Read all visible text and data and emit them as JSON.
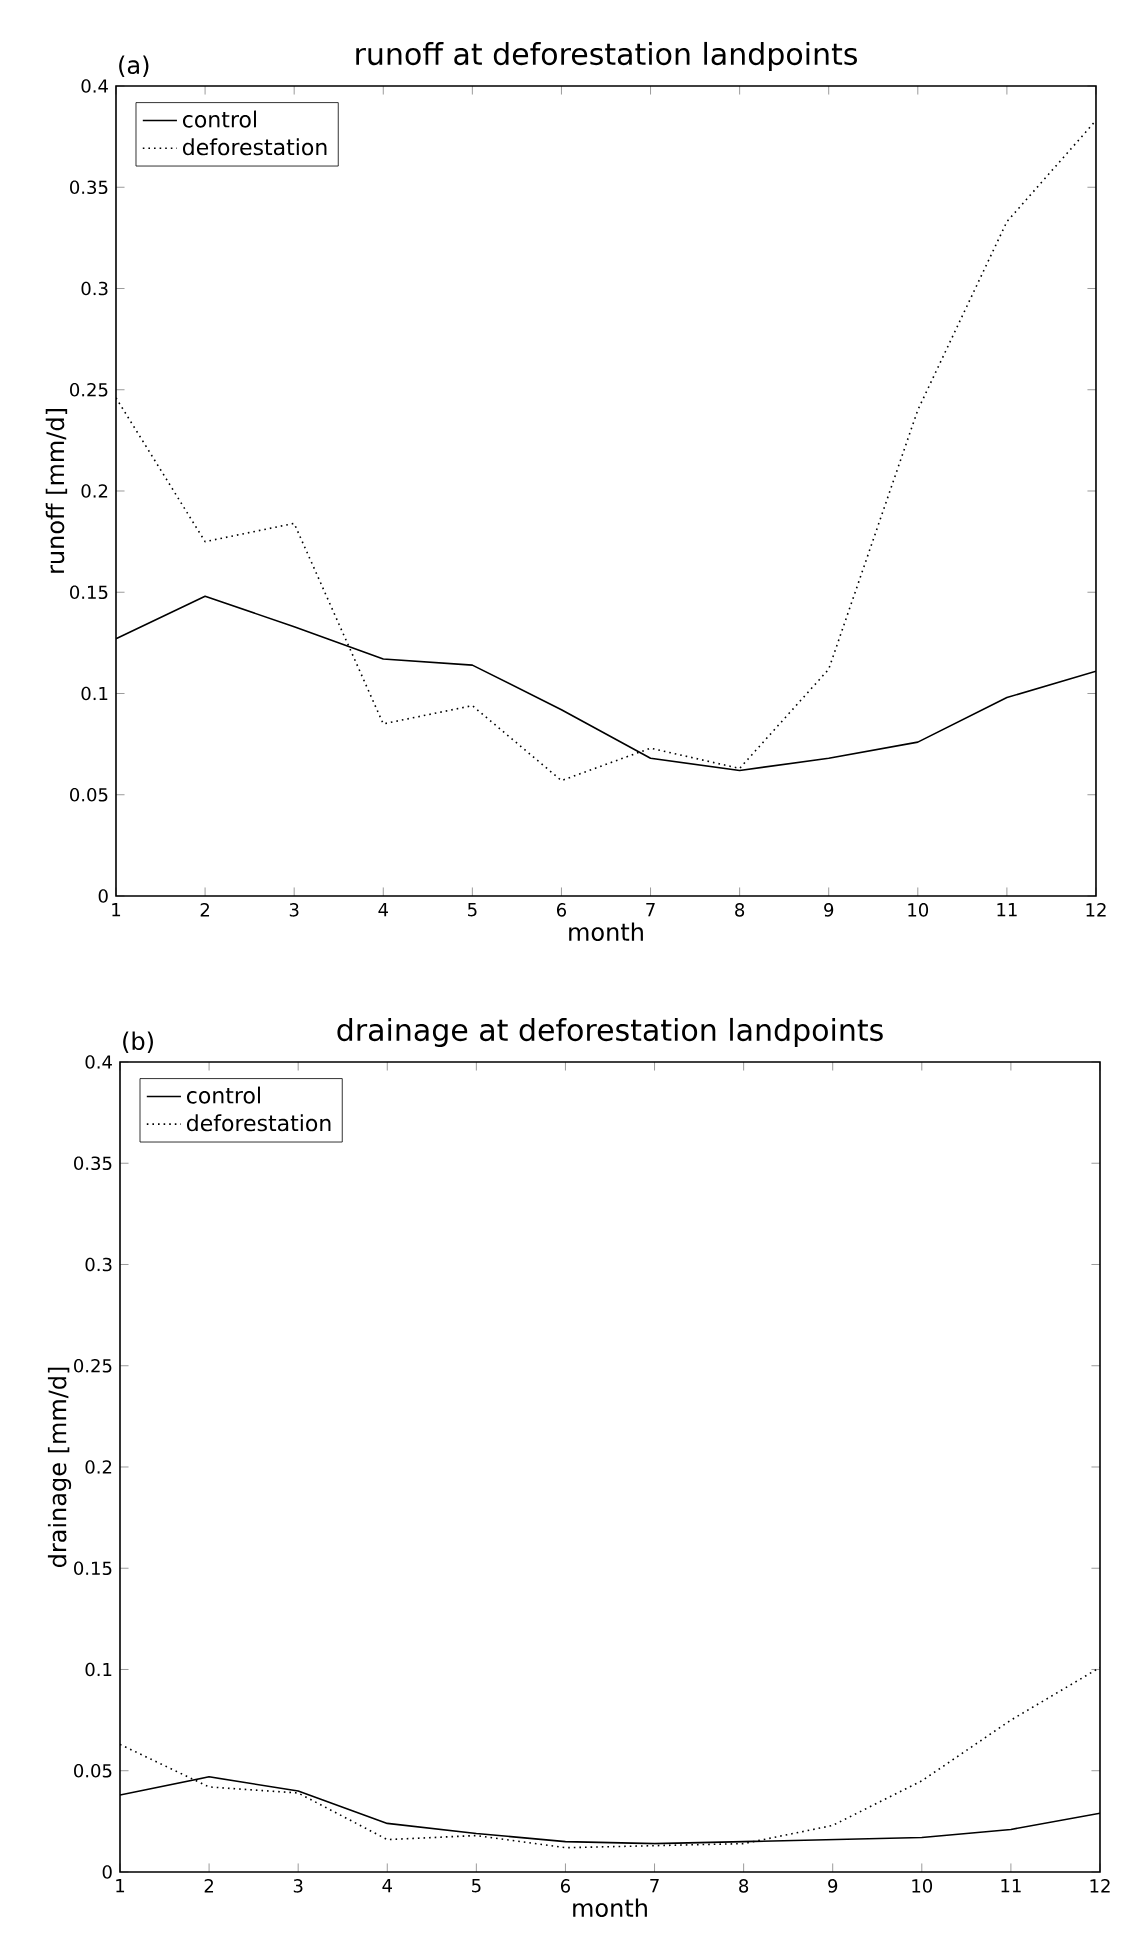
{
  "chart_data": [
    {
      "type": "line",
      "title": "runoff at deforestation landpoints",
      "annotations": [
        "(a)"
      ],
      "xlabel": "month",
      "ylabel": "runoff [mm/d]",
      "x": [
        1,
        2,
        3,
        4,
        5,
        6,
        7,
        8,
        9,
        10,
        11,
        12
      ],
      "series": [
        {
          "name": "control",
          "color": "#000000",
          "line_style": "solid",
          "values": [
            0.127,
            0.148,
            0.133,
            0.117,
            0.114,
            0.092,
            0.068,
            0.062,
            0.068,
            0.076,
            0.098,
            0.111
          ]
        },
        {
          "name": "deforestation",
          "color": "#000000",
          "line_style": "dotted",
          "values": [
            0.246,
            0.175,
            0.184,
            0.085,
            0.094,
            0.057,
            0.073,
            0.063,
            0.112,
            0.24,
            0.333,
            0.383
          ]
        }
      ],
      "xlim": [
        1,
        12
      ],
      "ylim": [
        0,
        0.4
      ],
      "xticks": [
        1,
        2,
        3,
        4,
        5,
        6,
        7,
        8,
        9,
        10,
        11,
        12
      ],
      "yticks": [
        0,
        0.05,
        0.1,
        0.15,
        0.2,
        0.25,
        0.3,
        0.35,
        0.4
      ],
      "grid": false,
      "legend": "top left",
      "marker": "none"
    },
    {
      "type": "line",
      "title": "drainage at deforestation landpoints",
      "annotations": [
        "(b)"
      ],
      "xlabel": "month",
      "ylabel": "drainage [mm/d]",
      "x": [
        1,
        2,
        3,
        4,
        5,
        6,
        7,
        8,
        9,
        10,
        11,
        12
      ],
      "series": [
        {
          "name": "control",
          "color": "#000000",
          "line_style": "solid",
          "values": [
            0.038,
            0.047,
            0.04,
            0.024,
            0.019,
            0.015,
            0.014,
            0.015,
            0.016,
            0.017,
            0.021,
            0.029
          ]
        },
        {
          "name": "deforestation",
          "color": "#000000",
          "line_style": "dotted",
          "values": [
            0.063,
            0.042,
            0.039,
            0.016,
            0.018,
            0.012,
            0.013,
            0.014,
            0.023,
            0.045,
            0.075,
            0.101
          ]
        }
      ],
      "xlim": [
        1,
        12
      ],
      "ylim": [
        0,
        0.4
      ],
      "xticks": [
        1,
        2,
        3,
        4,
        5,
        6,
        7,
        8,
        9,
        10,
        11,
        12
      ],
      "yticks": [
        0,
        0.05,
        0.1,
        0.15,
        0.2,
        0.25,
        0.3,
        0.35,
        0.4
      ],
      "grid": false,
      "legend": "top left",
      "marker": "none"
    }
  ]
}
